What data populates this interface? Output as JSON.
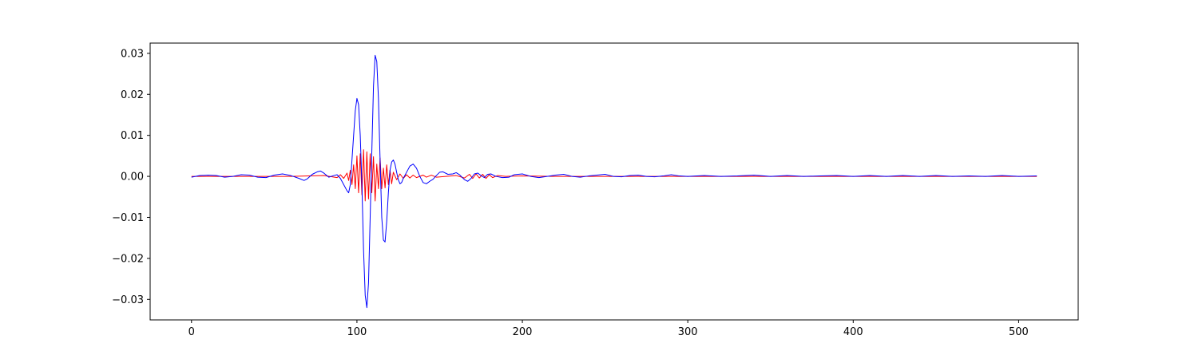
{
  "chart_data": {
    "type": "line",
    "title": "",
    "xlabel": "",
    "ylabel": "",
    "xlim": [
      -25,
      536
    ],
    "ylim": [
      -0.035,
      0.0325
    ],
    "grid": false,
    "legend": "none",
    "x_ticks": [
      0,
      100,
      200,
      300,
      400,
      500
    ],
    "x_tick_labels": [
      "0",
      "100",
      "200",
      "300",
      "400",
      "500"
    ],
    "y_ticks": [
      -0.03,
      -0.02,
      -0.01,
      0.0,
      0.01,
      0.02,
      0.03
    ],
    "y_tick_labels": [
      "−0.03",
      "−0.02",
      "−0.01",
      "0.00",
      "0.01",
      "0.02",
      "0.03"
    ],
    "series": [
      {
        "color": "#ff0000",
        "points": [
          [
            0,
            0.0
          ],
          [
            60,
            0.0
          ],
          [
            80,
            0.0002
          ],
          [
            88,
            -0.0003
          ],
          [
            90,
            0.0004
          ],
          [
            92,
            -0.0005
          ],
          [
            94,
            0.0008
          ],
          [
            95,
            -0.001
          ],
          [
            96,
            0.0015
          ],
          [
            97,
            -0.002
          ],
          [
            98,
            0.0028
          ],
          [
            99,
            -0.003
          ],
          [
            100,
            0.005
          ],
          [
            101,
            -0.004
          ],
          [
            102,
            0.0055
          ],
          [
            103,
            -0.0045
          ],
          [
            104,
            0.0065
          ],
          [
            105,
            -0.006
          ],
          [
            106,
            0.006
          ],
          [
            107,
            -0.0055
          ],
          [
            108,
            0.0055
          ],
          [
            109,
            -0.004
          ],
          [
            110,
            0.0048
          ],
          [
            111,
            -0.006
          ],
          [
            112,
            0.003
          ],
          [
            113,
            -0.003
          ],
          [
            114,
            0.0045
          ],
          [
            115,
            -0.003
          ],
          [
            116,
            0.002
          ],
          [
            117,
            -0.0028
          ],
          [
            118,
            0.0028
          ],
          [
            119,
            -0.002
          ],
          [
            120,
            0.0015
          ],
          [
            121,
            -0.0018
          ],
          [
            122,
            0.001
          ],
          [
            124,
            -0.0008
          ],
          [
            126,
            0.0006
          ],
          [
            128,
            -0.0005
          ],
          [
            130,
            0.0004
          ],
          [
            132,
            -0.0004
          ],
          [
            134,
            0.0003
          ],
          [
            136,
            -0.0003
          ],
          [
            140,
            0.0003
          ],
          [
            142,
            -0.0002
          ],
          [
            145,
            0.0003
          ],
          [
            148,
            -0.0002
          ],
          [
            160,
            0.0002
          ],
          [
            165,
            -0.0004
          ],
          [
            168,
            0.0005
          ],
          [
            170,
            -0.0005
          ],
          [
            172,
            0.0006
          ],
          [
            174,
            -0.0004
          ],
          [
            176,
            0.0005
          ],
          [
            178,
            -0.0005
          ],
          [
            180,
            0.0004
          ],
          [
            182,
            -0.0003
          ],
          [
            185,
            0.0002
          ],
          [
            190,
            0.0
          ],
          [
            200,
            0.0001
          ],
          [
            220,
            0.0
          ],
          [
            300,
            0.0
          ],
          [
            511,
            0.0
          ]
        ]
      },
      {
        "color": "#0000ff",
        "points": [
          [
            0,
            -0.0002
          ],
          [
            5,
            0.0002
          ],
          [
            10,
            0.0003
          ],
          [
            15,
            0.0002
          ],
          [
            20,
            -0.0002
          ],
          [
            25,
            0.0
          ],
          [
            30,
            0.0004
          ],
          [
            35,
            0.0003
          ],
          [
            40,
            -0.0002
          ],
          [
            45,
            -0.0003
          ],
          [
            50,
            0.0003
          ],
          [
            55,
            0.0006
          ],
          [
            60,
            0.0002
          ],
          [
            65,
            -0.0005
          ],
          [
            68,
            -0.001
          ],
          [
            70,
            -0.0006
          ],
          [
            73,
            0.0005
          ],
          [
            76,
            0.0011
          ],
          [
            78,
            0.0013
          ],
          [
            80,
            0.0008
          ],
          [
            83,
            -0.0002
          ],
          [
            86,
            0.0002
          ],
          [
            88,
            0.0004
          ],
          [
            90,
            -0.0005
          ],
          [
            92,
            -0.002
          ],
          [
            94,
            -0.0035
          ],
          [
            95,
            -0.004
          ],
          [
            96,
            -0.002
          ],
          [
            97,
            0.004
          ],
          [
            98,
            0.01
          ],
          [
            99,
            0.016
          ],
          [
            100,
            0.019
          ],
          [
            101,
            0.0175
          ],
          [
            102,
            0.01
          ],
          [
            103,
            -0.002
          ],
          [
            104,
            -0.018
          ],
          [
            105,
            -0.029
          ],
          [
            106,
            -0.032
          ],
          [
            107,
            -0.026
          ],
          [
            108,
            -0.01
          ],
          [
            109,
            0.006
          ],
          [
            110,
            0.022
          ],
          [
            111,
            0.0295
          ],
          [
            112,
            0.028
          ],
          [
            113,
            0.019
          ],
          [
            114,
            0.004
          ],
          [
            115,
            -0.01
          ],
          [
            116,
            -0.0155
          ],
          [
            117,
            -0.016
          ],
          [
            118,
            -0.011
          ],
          [
            119,
            -0.004
          ],
          [
            120,
            0.0015
          ],
          [
            121,
            0.0035
          ],
          [
            122,
            0.004
          ],
          [
            123,
            0.003
          ],
          [
            124,
            0.001
          ],
          [
            125,
            -0.0008
          ],
          [
            126,
            -0.0018
          ],
          [
            127,
            -0.0015
          ],
          [
            128,
            -0.0005
          ],
          [
            130,
            0.001
          ],
          [
            132,
            0.0025
          ],
          [
            134,
            0.003
          ],
          [
            136,
            0.002
          ],
          [
            138,
            0.0
          ],
          [
            140,
            -0.0015
          ],
          [
            142,
            -0.0018
          ],
          [
            144,
            -0.0012
          ],
          [
            146,
            -0.0007
          ],
          [
            148,
            0.0002
          ],
          [
            150,
            0.001
          ],
          [
            152,
            0.0011
          ],
          [
            155,
            0.0005
          ],
          [
            158,
            0.0006
          ],
          [
            160,
            0.0009
          ],
          [
            162,
            0.0004
          ],
          [
            165,
            -0.0008
          ],
          [
            167,
            -0.0012
          ],
          [
            169,
            -0.0005
          ],
          [
            171,
            0.0006
          ],
          [
            173,
            0.0008
          ],
          [
            175,
            0.0002
          ],
          [
            177,
            -0.0003
          ],
          [
            179,
            0.0005
          ],
          [
            181,
            0.0006
          ],
          [
            184,
            0.0
          ],
          [
            188,
            -0.0003
          ],
          [
            192,
            -0.0002
          ],
          [
            195,
            0.0004
          ],
          [
            200,
            0.0006
          ],
          [
            205,
            0.0
          ],
          [
            210,
            -0.0003
          ],
          [
            215,
            0.0
          ],
          [
            220,
            0.0003
          ],
          [
            225,
            0.0005
          ],
          [
            230,
            0.0
          ],
          [
            235,
            -0.0002
          ],
          [
            240,
            0.0001
          ],
          [
            245,
            0.0003
          ],
          [
            250,
            0.0005
          ],
          [
            255,
            0.0
          ],
          [
            260,
            -0.0001
          ],
          [
            265,
            0.0002
          ],
          [
            270,
            0.0003
          ],
          [
            275,
            0.0
          ],
          [
            280,
            -0.0001
          ],
          [
            285,
            0.0001
          ],
          [
            290,
            0.0004
          ],
          [
            295,
            0.0001
          ],
          [
            300,
            0.0
          ],
          [
            310,
            0.0002
          ],
          [
            320,
            0.0
          ],
          [
            330,
            0.0001
          ],
          [
            340,
            0.0003
          ],
          [
            350,
            0.0
          ],
          [
            360,
            0.0002
          ],
          [
            370,
            0.0
          ],
          [
            380,
            0.0001
          ],
          [
            390,
            0.0002
          ],
          [
            400,
            0.0
          ],
          [
            410,
            0.0002
          ],
          [
            420,
            0.0
          ],
          [
            430,
            0.0002
          ],
          [
            440,
            0.0
          ],
          [
            450,
            0.0002
          ],
          [
            460,
            0.0
          ],
          [
            470,
            0.0001
          ],
          [
            480,
            0.0
          ],
          [
            490,
            0.0002
          ],
          [
            500,
            0.0
          ],
          [
            511,
            0.0001
          ]
        ]
      }
    ]
  }
}
